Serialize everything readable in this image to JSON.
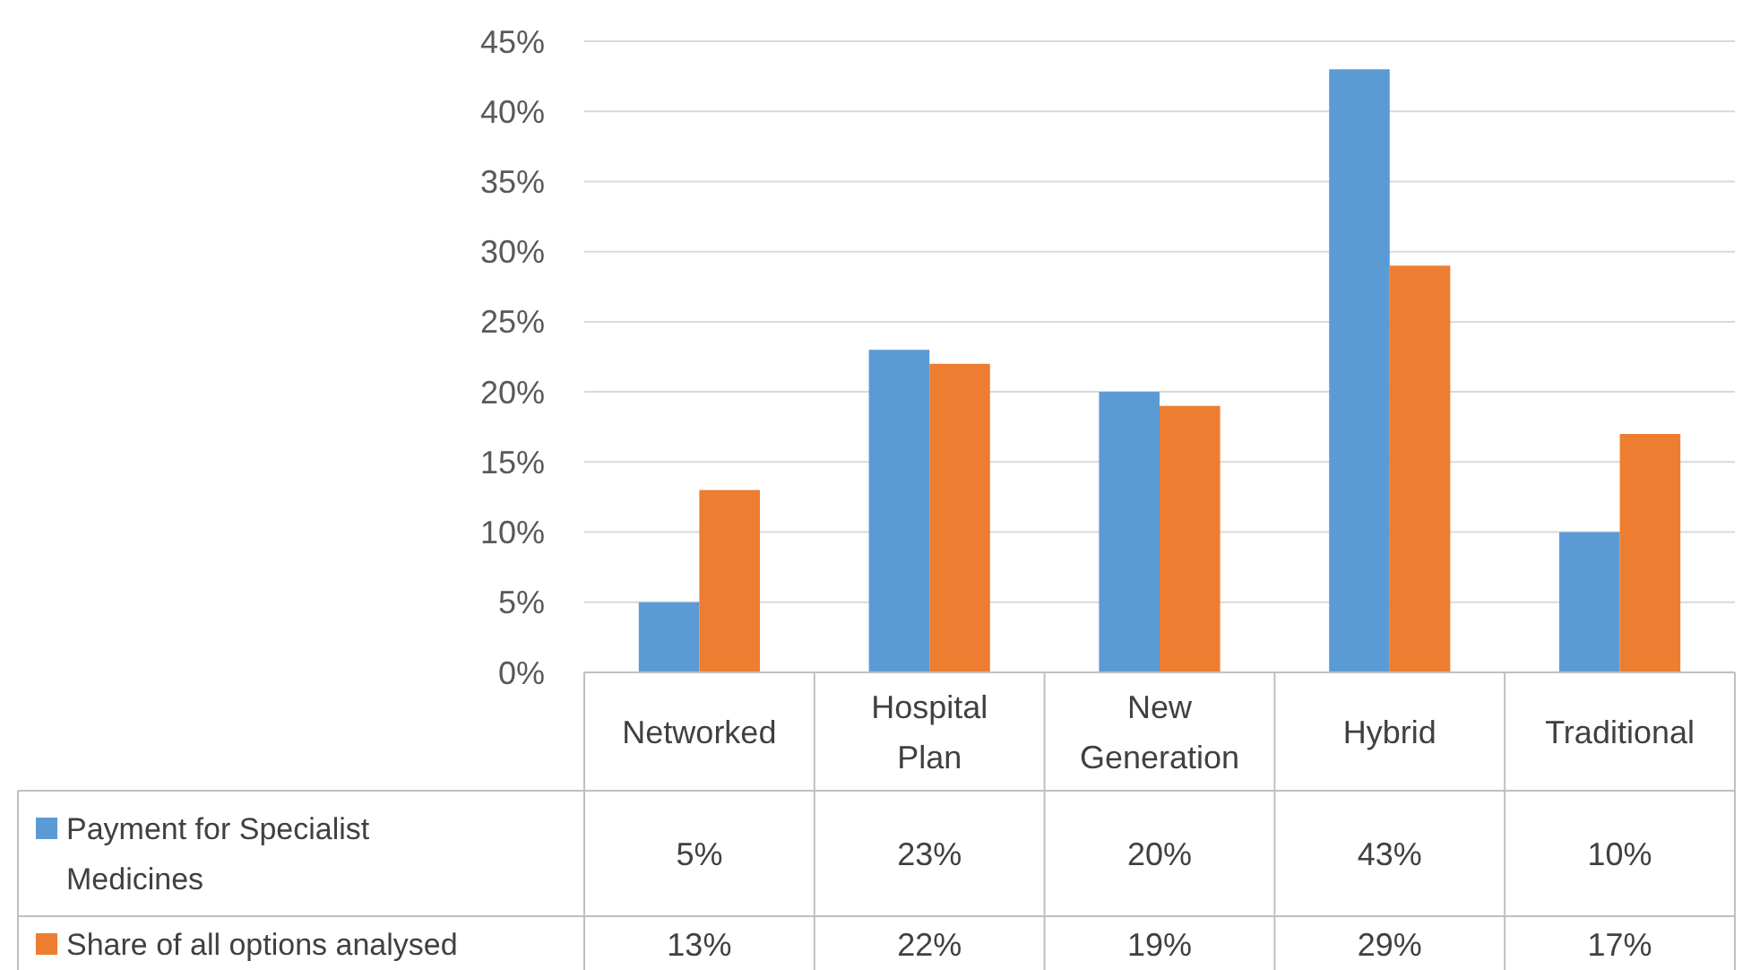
{
  "chart_data": {
    "type": "bar",
    "categories": [
      "Networked",
      "Hospital Plan",
      "New Generation",
      "Hybrid",
      "Traditional"
    ],
    "series": [
      {
        "name": "Payment for Specialist Medicines",
        "color": "#5b9bd5",
        "values": [
          5,
          23,
          20,
          43,
          10
        ],
        "value_labels": [
          "5%",
          "23%",
          "20%",
          "43%",
          "10%"
        ]
      },
      {
        "name": "Share of all options analysed",
        "color": "#ed7d31",
        "values": [
          13,
          22,
          19,
          29,
          17
        ],
        "value_labels": [
          "13%",
          "22%",
          "19%",
          "29%",
          "17%"
        ]
      }
    ],
    "ylim": [
      0,
      45
    ],
    "yticks": [
      {
        "value": 0,
        "label": "0%"
      },
      {
        "value": 5,
        "label": "5%"
      },
      {
        "value": 10,
        "label": "10%"
      },
      {
        "value": 15,
        "label": "15%"
      },
      {
        "value": 20,
        "label": "20%"
      },
      {
        "value": 25,
        "label": "25%"
      },
      {
        "value": 30,
        "label": "30%"
      },
      {
        "value": 35,
        "label": "35%"
      },
      {
        "value": 40,
        "label": "40%"
      },
      {
        "value": 45,
        "label": "45%"
      }
    ],
    "grid": "y",
    "legend": "bottom"
  }
}
